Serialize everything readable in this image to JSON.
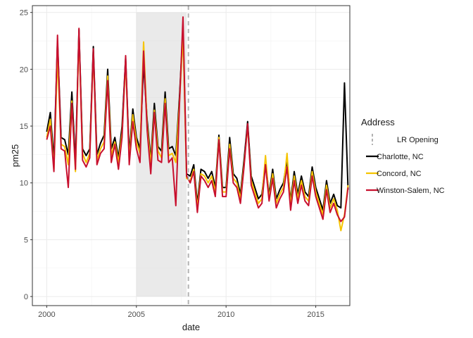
{
  "chart_data": {
    "type": "line",
    "xlabel": "date",
    "ylabel": "pm25",
    "xlim": [
      1999.2,
      2016.9
    ],
    "ylim": [
      -0.8,
      25.6
    ],
    "x_ticks": [
      2000,
      2005,
      2010,
      2015
    ],
    "y_ticks": [
      0,
      5,
      10,
      15,
      20,
      25
    ],
    "grid": true,
    "legend": {
      "title": "Address",
      "position": "right",
      "vline_label": "LR Opening"
    },
    "shaded_region": {
      "x": [
        2005.0,
        2007.8
      ],
      "y": [
        0,
        25
      ],
      "color": "#d9d9d9"
    },
    "vline": {
      "x": 2007.9,
      "label": "LR Opening",
      "style": "dashed",
      "color": "#b3b3b3"
    },
    "series": [
      {
        "name": "Charlotte, NC",
        "color": "#000000",
        "x": [
          2000.0,
          2000.2,
          2000.4,
          2000.6,
          2000.8,
          2001.0,
          2001.2,
          2001.4,
          2001.6,
          2001.8,
          2002.0,
          2002.2,
          2002.4,
          2002.6,
          2002.8,
          2003.0,
          2003.2,
          2003.4,
          2003.6,
          2003.8,
          2004.0,
          2004.2,
          2004.4,
          2004.6,
          2004.8,
          2005.0,
          2005.2,
          2005.4,
          2005.6,
          2005.8,
          2006.0,
          2006.2,
          2006.4,
          2006.6,
          2006.8,
          2007.0,
          2007.2,
          2007.4,
          2007.6,
          2007.8,
          2008.0,
          2008.2,
          2008.4,
          2008.6,
          2008.8,
          2009.0,
          2009.2,
          2009.4,
          2009.6,
          2009.8,
          2010.0,
          2010.2,
          2010.4,
          2010.6,
          2010.8,
          2011.0,
          2011.2,
          2011.4,
          2011.6,
          2011.8,
          2012.0,
          2012.2,
          2012.4,
          2012.6,
          2012.8,
          2013.0,
          2013.2,
          2013.4,
          2013.6,
          2013.8,
          2014.0,
          2014.2,
          2014.4,
          2014.6,
          2014.8,
          2015.0,
          2015.2,
          2015.4,
          2015.6,
          2015.8,
          2016.0,
          2016.2,
          2016.4,
          2016.6,
          2016.8
        ],
        "values": [
          14.5,
          16.2,
          12.0,
          22.5,
          14.0,
          13.8,
          12.5,
          18.0,
          11.8,
          23.5,
          13.0,
          12.4,
          13.0,
          22.0,
          12.5,
          13.5,
          14.2,
          20.0,
          13.0,
          14.0,
          12.2,
          15.0,
          21.0,
          12.5,
          16.5,
          14.0,
          13.0,
          20.5,
          15.5,
          12.0,
          17.0,
          13.2,
          12.8,
          18.0,
          13.0,
          13.2,
          12.4,
          17.5,
          23.5,
          10.8,
          10.6,
          11.6,
          8.2,
          11.2,
          11.0,
          10.4,
          11.0,
          9.6,
          14.2,
          9.6,
          9.6,
          14.0,
          10.8,
          10.4,
          9.0,
          12.0,
          15.4,
          10.6,
          9.6,
          8.6,
          9.0,
          11.8,
          9.0,
          11.2,
          8.6,
          9.4,
          10.0,
          12.0,
          8.4,
          11.0,
          9.0,
          10.6,
          9.2,
          8.8,
          11.4,
          9.6,
          8.6,
          7.6,
          10.2,
          8.2,
          9.0,
          8.0,
          7.8,
          18.8,
          9.4
        ]
      },
      {
        "name": "Concord, NC",
        "color": "#f5c400",
        "x": [
          2000.0,
          2000.2,
          2000.4,
          2000.6,
          2000.8,
          2001.0,
          2001.2,
          2001.4,
          2001.6,
          2001.8,
          2002.0,
          2002.2,
          2002.4,
          2002.6,
          2002.8,
          2003.0,
          2003.2,
          2003.4,
          2003.6,
          2003.8,
          2004.0,
          2004.2,
          2004.4,
          2004.6,
          2004.8,
          2005.0,
          2005.2,
          2005.4,
          2005.6,
          2005.8,
          2006.0,
          2006.2,
          2006.4,
          2006.6,
          2006.8,
          2007.0,
          2007.2,
          2007.4,
          2007.6,
          2007.8,
          2008.0,
          2008.2,
          2008.4,
          2008.6,
          2008.8,
          2009.0,
          2009.2,
          2009.4,
          2009.6,
          2009.8,
          2010.0,
          2010.2,
          2010.4,
          2010.6,
          2010.8,
          2011.0,
          2011.2,
          2011.4,
          2011.6,
          2011.8,
          2012.0,
          2012.2,
          2012.4,
          2012.6,
          2012.8,
          2013.0,
          2013.2,
          2013.4,
          2013.6,
          2013.8,
          2014.0,
          2014.2,
          2014.4,
          2014.6,
          2014.8,
          2015.0,
          2015.2,
          2015.4,
          2015.6,
          2015.8,
          2016.0,
          2016.2,
          2016.4,
          2016.6,
          2016.8
        ],
        "values": [
          14.0,
          15.6,
          11.2,
          21.0,
          13.4,
          13.2,
          11.6,
          17.2,
          11.0,
          23.0,
          12.6,
          11.8,
          12.6,
          21.4,
          12.0,
          13.0,
          13.6,
          19.4,
          12.4,
          13.6,
          11.8,
          14.4,
          20.6,
          12.0,
          16.0,
          13.6,
          12.6,
          22.4,
          15.0,
          11.6,
          16.4,
          12.8,
          12.2,
          17.4,
          12.4,
          12.6,
          11.8,
          17.0,
          23.0,
          10.4,
          10.2,
          11.2,
          7.8,
          10.8,
          10.6,
          10.0,
          10.6,
          9.2,
          14.0,
          9.2,
          9.2,
          13.4,
          10.4,
          10.0,
          8.6,
          11.6,
          15.0,
          10.2,
          9.2,
          8.2,
          8.6,
          12.4,
          8.6,
          10.8,
          8.2,
          9.0,
          9.6,
          12.6,
          8.0,
          10.6,
          8.6,
          10.2,
          8.8,
          8.4,
          11.0,
          9.2,
          8.2,
          7.2,
          9.8,
          7.8,
          8.6,
          7.6,
          5.8,
          7.2,
          9.8
        ]
      },
      {
        "name": "Winston-Salem, NC",
        "color": "#c8102e",
        "x": [
          2000.0,
          2000.2,
          2000.4,
          2000.6,
          2000.8,
          2001.0,
          2001.2,
          2001.4,
          2001.6,
          2001.8,
          2002.0,
          2002.2,
          2002.4,
          2002.6,
          2002.8,
          2003.0,
          2003.2,
          2003.4,
          2003.6,
          2003.8,
          2004.0,
          2004.2,
          2004.4,
          2004.6,
          2004.8,
          2005.0,
          2005.2,
          2005.4,
          2005.6,
          2005.8,
          2006.0,
          2006.2,
          2006.4,
          2006.6,
          2006.8,
          2007.0,
          2007.2,
          2007.4,
          2007.6,
          2007.8,
          2008.0,
          2008.2,
          2008.4,
          2008.6,
          2008.8,
          2009.0,
          2009.2,
          2009.4,
          2009.6,
          2009.8,
          2010.0,
          2010.2,
          2010.4,
          2010.6,
          2010.8,
          2011.0,
          2011.2,
          2011.4,
          2011.6,
          2011.8,
          2012.0,
          2012.2,
          2012.4,
          2012.6,
          2012.8,
          2013.0,
          2013.2,
          2013.4,
          2013.6,
          2013.8,
          2014.0,
          2014.2,
          2014.4,
          2014.6,
          2014.8,
          2015.0,
          2015.2,
          2015.4,
          2015.6,
          2015.8,
          2016.0,
          2016.2,
          2016.4,
          2016.6,
          2016.8
        ],
        "values": [
          13.8,
          15.0,
          11.0,
          23.0,
          13.0,
          12.8,
          9.6,
          17.0,
          11.2,
          23.6,
          12.0,
          11.4,
          12.2,
          21.8,
          11.6,
          12.6,
          13.0,
          19.0,
          11.8,
          13.4,
          11.2,
          14.0,
          21.2,
          11.6,
          15.4,
          13.0,
          11.8,
          21.6,
          14.6,
          10.8,
          16.2,
          12.0,
          11.8,
          17.0,
          11.8,
          12.2,
          8.0,
          16.8,
          24.6,
          10.6,
          10.0,
          11.0,
          7.4,
          10.6,
          10.2,
          9.6,
          10.2,
          8.8,
          13.8,
          8.8,
          8.8,
          13.0,
          10.0,
          9.6,
          8.2,
          11.4,
          15.2,
          9.8,
          8.8,
          7.8,
          8.2,
          11.6,
          8.4,
          10.4,
          7.8,
          8.6,
          9.2,
          11.4,
          7.6,
          10.2,
          8.2,
          9.8,
          8.4,
          8.0,
          10.6,
          8.8,
          7.8,
          6.8,
          9.4,
          7.4,
          8.2,
          7.2,
          6.6,
          7.0,
          9.6
        ]
      }
    ]
  }
}
